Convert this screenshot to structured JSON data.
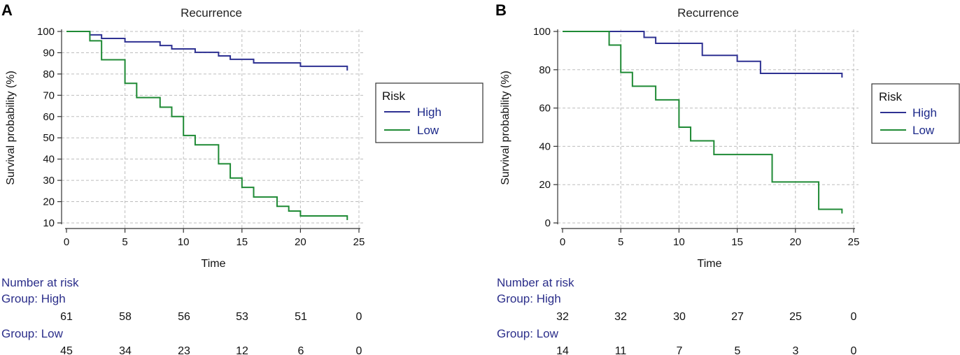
{
  "chart_data": [
    {
      "panel": "A",
      "type": "line",
      "title": "Recurrence",
      "xlabel": "Time",
      "ylabel": "Survival probability (%)",
      "xlim": [
        0,
        25
      ],
      "ylim": [
        10,
        100
      ],
      "xticks": [
        0,
        5,
        10,
        15,
        20,
        25
      ],
      "yticks": [
        10,
        20,
        30,
        40,
        50,
        60,
        70,
        80,
        90,
        100
      ],
      "legend": {
        "title": "Risk",
        "labels": [
          "High",
          "Low"
        ]
      },
      "series": [
        {
          "name": "High",
          "color": "#2e3192",
          "x": [
            0,
            2,
            3,
            5,
            8,
            9,
            11,
            13,
            14,
            16,
            20,
            24
          ],
          "y": [
            100,
            98.4,
            96.7,
            95.1,
            93.4,
            91.8,
            90.2,
            88.5,
            86.9,
            85.2,
            83.6,
            83.6
          ]
        },
        {
          "name": "Low",
          "color": "#1f8a35",
          "x": [
            0,
            2,
            3,
            5,
            6,
            8,
            9,
            10,
            11,
            13,
            14,
            15,
            16,
            18,
            19,
            20,
            24
          ],
          "y": [
            100,
            95.6,
            86.7,
            75.6,
            68.9,
            64.4,
            60.0,
            51.1,
            46.7,
            37.8,
            31.1,
            26.7,
            22.2,
            17.8,
            15.6,
            13.3,
            13.3
          ]
        }
      ],
      "risk_table": {
        "header": "Number at risk",
        "groups": [
          {
            "label": "Group: High",
            "values": [
              61,
              58,
              56,
              53,
              51,
              0
            ]
          },
          {
            "label": "Group: Low",
            "values": [
              45,
              34,
              23,
              12,
              6,
              0
            ]
          }
        ]
      }
    },
    {
      "panel": "B",
      "type": "line",
      "title": "Recurrence",
      "xlabel": "Time",
      "ylabel": "Survival probability (%)",
      "xlim": [
        0,
        25
      ],
      "ylim": [
        0,
        100
      ],
      "xticks": [
        0,
        5,
        10,
        15,
        20,
        25
      ],
      "yticks": [
        0,
        20,
        40,
        60,
        80,
        100
      ],
      "legend": {
        "title": "Risk",
        "labels": [
          "High",
          "Low"
        ]
      },
      "series": [
        {
          "name": "High",
          "color": "#2e3192",
          "x": [
            0,
            7,
            8,
            12,
            15,
            17,
            24
          ],
          "y": [
            100,
            96.9,
            93.8,
            87.5,
            84.4,
            78.1,
            78.1
          ]
        },
        {
          "name": "Low",
          "color": "#1f8a35",
          "x": [
            0,
            4,
            5,
            6,
            8,
            10,
            11,
            13,
            18,
            22,
            24
          ],
          "y": [
            100,
            92.9,
            78.6,
            71.4,
            64.3,
            50.0,
            42.9,
            35.7,
            21.4,
            7.1,
            7.1
          ]
        }
      ],
      "risk_table": {
        "header": "Number at risk",
        "groups": [
          {
            "label": "Group: High",
            "values": [
              32,
              32,
              30,
              27,
              25,
              0
            ]
          },
          {
            "label": "Group: Low",
            "values": [
              14,
              11,
              7,
              5,
              3,
              0
            ]
          }
        ]
      }
    }
  ]
}
